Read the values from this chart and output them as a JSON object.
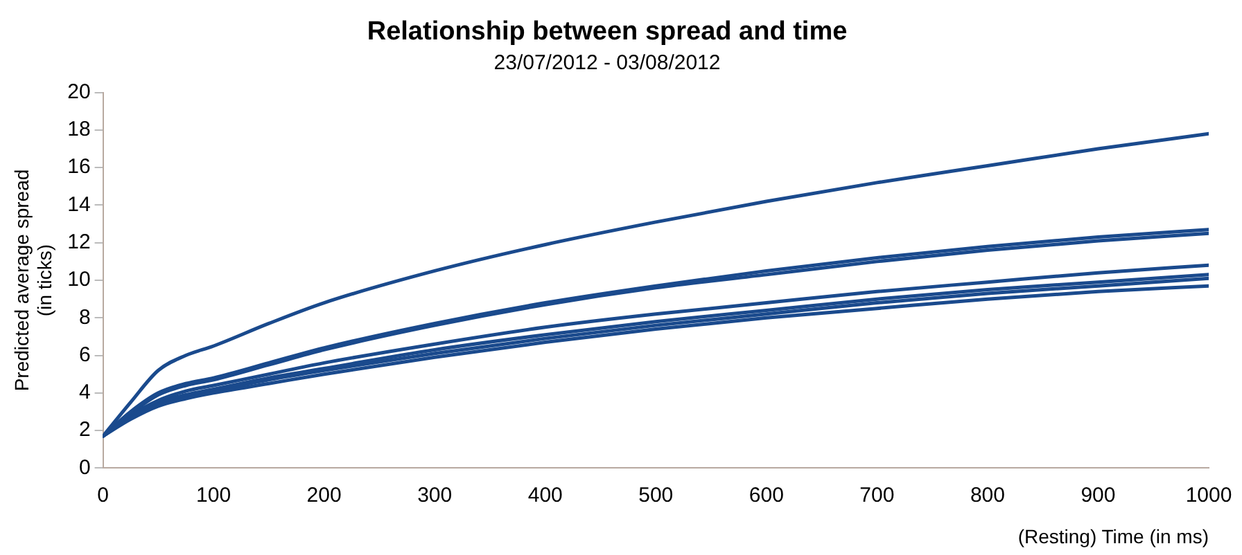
{
  "chart_data": {
    "type": "line",
    "title": "Relationship between spread and time",
    "subtitle": "23/07/2012 - 03/08/2012",
    "xlabel": "(Resting) Time (in ms)",
    "ylabel": "Predicted average spread\n(in ticks)",
    "x": [
      0,
      25,
      50,
      75,
      100,
      150,
      200,
      300,
      400,
      500,
      600,
      700,
      800,
      900,
      1000
    ],
    "series": [
      {
        "color": "#1a4a8d",
        "values": [
          1.7,
          3.5,
          5.2,
          6.0,
          6.5,
          7.7,
          8.8,
          10.5,
          11.9,
          13.1,
          14.2,
          15.2,
          16.1,
          17.0,
          17.8
        ]
      },
      {
        "color": "#1a4a8d",
        "values": [
          1.7,
          3.0,
          4.0,
          4.5,
          4.8,
          5.6,
          6.4,
          7.7,
          8.8,
          9.7,
          10.5,
          11.2,
          11.8,
          12.3,
          12.7
        ]
      },
      {
        "color": "#1a4a8d",
        "values": [
          1.7,
          2.9,
          3.9,
          4.4,
          4.7,
          5.5,
          6.3,
          7.6,
          8.7,
          9.6,
          10.3,
          11.0,
          11.6,
          12.1,
          12.5
        ]
      },
      {
        "color": "#1a4a8d",
        "values": [
          1.7,
          2.8,
          3.6,
          4.1,
          4.4,
          5.0,
          5.6,
          6.6,
          7.5,
          8.2,
          8.8,
          9.4,
          9.9,
          10.4,
          10.8
        ]
      },
      {
        "color": "#1a4a8d",
        "values": [
          1.7,
          2.7,
          3.5,
          3.9,
          4.2,
          4.8,
          5.3,
          6.3,
          7.1,
          7.8,
          8.4,
          9.0,
          9.5,
          9.9,
          10.3
        ]
      },
      {
        "color": "#1a4a8d",
        "values": [
          1.7,
          2.7,
          3.4,
          3.8,
          4.1,
          4.7,
          5.2,
          6.1,
          6.9,
          7.6,
          8.2,
          8.8,
          9.3,
          9.7,
          10.1
        ]
      },
      {
        "color": "#1a4a8d",
        "values": [
          1.7,
          2.6,
          3.3,
          3.7,
          4.0,
          4.5,
          5.0,
          5.9,
          6.7,
          7.4,
          8.0,
          8.5,
          9.0,
          9.4,
          9.7
        ]
      }
    ],
    "xlim": [
      0,
      1000
    ],
    "xticks": [
      0,
      100,
      200,
      300,
      400,
      500,
      600,
      700,
      800,
      900,
      1000
    ],
    "ylim": [
      0,
      20
    ],
    "yticks": [
      0,
      2,
      4,
      6,
      8,
      10,
      12,
      14,
      16,
      18,
      20
    ],
    "grid": false,
    "legend": false,
    "marker": "none",
    "line_style": "solid"
  }
}
